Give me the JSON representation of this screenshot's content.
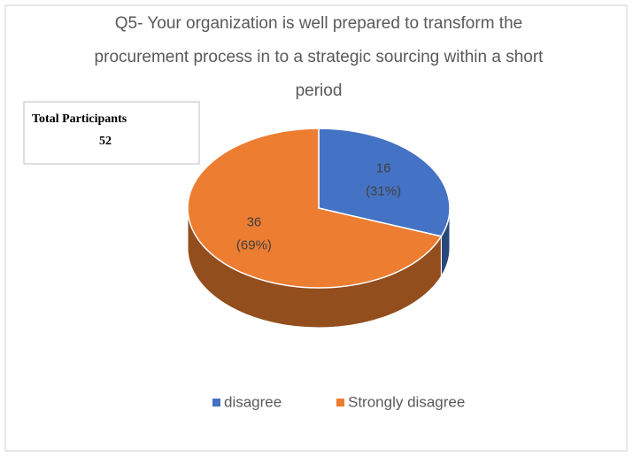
{
  "chart_data": {
    "type": "pie",
    "title": "Q5- Your organization is well prepared to transform the procurement process in to a strategic sourcing within a short period",
    "categories": [
      "disagree",
      "Strongly disagree"
    ],
    "values": [
      16,
      36
    ],
    "percent_labels": [
      "(31%)",
      "(69%)"
    ],
    "colors": [
      "#4472c4",
      "#ed7d31"
    ],
    "legend": "bottom",
    "annotation": {
      "label": "Total Participants",
      "value": 52
    }
  }
}
